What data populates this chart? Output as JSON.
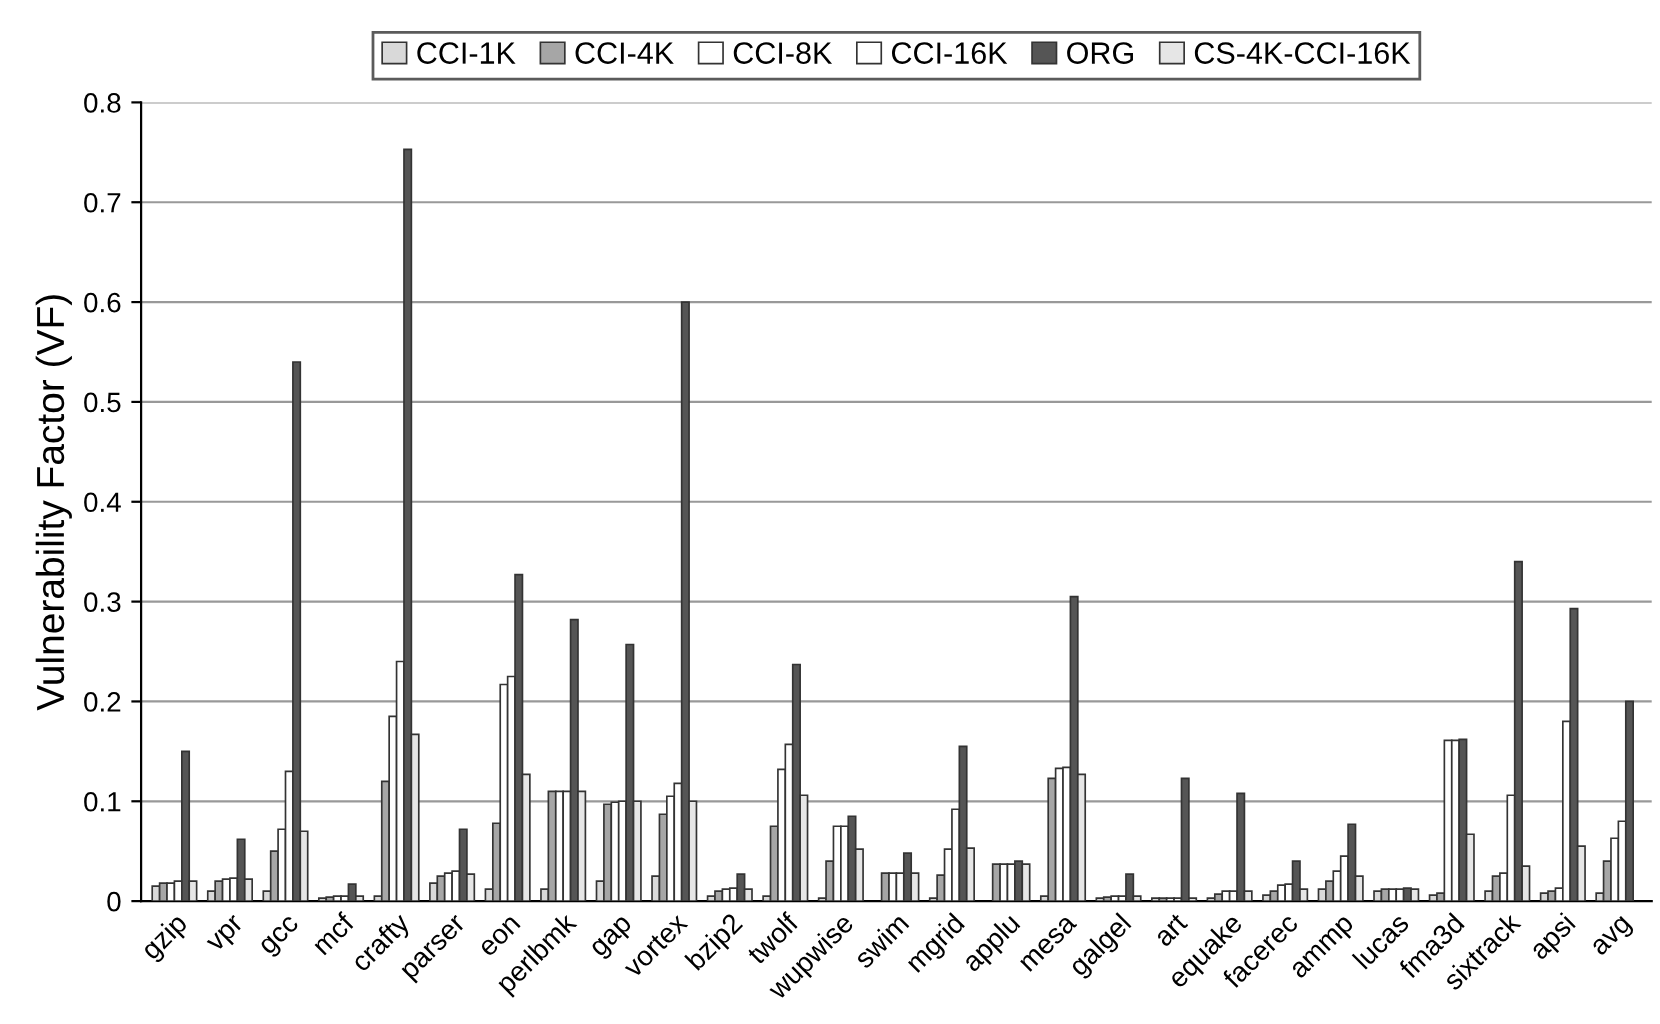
{
  "chart_data": {
    "type": "bar",
    "ylabel": "Vulnerability Factor (VF)",
    "categories": [
      "gzip",
      "vpr",
      "gcc",
      "mcf",
      "crafty",
      "parser",
      "eon",
      "perlbmk",
      "gap",
      "vortex",
      "bzip2",
      "twolf",
      "wupwise",
      "swim",
      "mgrid",
      "applu",
      "mesa",
      "galgel",
      "art",
      "equake",
      "facerec",
      "ammp",
      "lucas",
      "fma3d",
      "sixtrack",
      "apsi",
      "avg"
    ],
    "series": [
      {
        "name": "CCI-1K",
        "color": "#d9d9d9",
        "values": [
          0.015,
          0.01,
          0.01,
          0.003,
          0.005,
          0.018,
          0.012,
          0.012,
          0.02,
          0.025,
          0.005,
          0.005,
          0.003,
          null,
          0.003,
          null,
          0.005,
          0.003,
          0.003,
          0.003,
          0.006,
          0.012,
          0.01,
          0.006,
          0.01,
          0.008,
          0.008
        ]
      },
      {
        "name": "CCI-4K",
        "color": "#a6a6a6",
        "values": [
          0.018,
          0.02,
          0.05,
          0.004,
          0.12,
          0.025,
          0.078,
          0.11,
          0.097,
          0.087,
          0.01,
          0.075,
          0.04,
          0.028,
          0.026,
          0.037,
          0.123,
          0.004,
          0.003,
          0.007,
          0.01,
          0.02,
          0.012,
          0.008,
          0.025,
          0.01,
          0.04
        ]
      },
      {
        "name": "CCI-8K",
        "color": "#ffffff",
        "values": [
          0.018,
          0.022,
          0.072,
          0.005,
          0.185,
          0.028,
          0.217,
          0.11,
          0.099,
          0.105,
          0.012,
          0.132,
          0.075,
          0.028,
          0.052,
          0.037,
          0.133,
          0.005,
          0.003,
          0.01,
          0.016,
          0.03,
          0.012,
          0.161,
          0.028,
          0.013,
          0.063
        ]
      },
      {
        "name": "CCI-16K",
        "color": "#ffffff",
        "values": [
          0.02,
          0.023,
          0.13,
          0.005,
          0.24,
          0.03,
          0.225,
          0.11,
          0.1,
          0.118,
          0.013,
          0.157,
          0.075,
          0.028,
          0.092,
          0.037,
          0.134,
          0.005,
          0.003,
          0.01,
          0.017,
          0.045,
          0.012,
          0.161,
          0.106,
          0.18,
          0.08
        ]
      },
      {
        "name": "ORG",
        "color": "#555555",
        "values": [
          0.15,
          0.062,
          0.54,
          0.017,
          0.753,
          0.072,
          0.327,
          0.282,
          0.257,
          0.6,
          0.027,
          0.237,
          0.085,
          0.048,
          0.155,
          0.04,
          0.305,
          0.027,
          0.123,
          0.108,
          0.04,
          0.077,
          0.013,
          0.162,
          0.34,
          0.293,
          0.2
        ]
      },
      {
        "name": "CS-4K-CCI-16K",
        "color": "#e6e6e6",
        "values": [
          0.02,
          0.022,
          0.07,
          0.005,
          0.167,
          0.027,
          0.127,
          0.11,
          0.1,
          0.1,
          0.012,
          0.106,
          0.052,
          0.028,
          0.053,
          0.037,
          0.127,
          0.005,
          0.003,
          0.01,
          0.012,
          0.025,
          0.012,
          0.067,
          0.035,
          0.055,
          null
        ]
      }
    ],
    "ylim": [
      0,
      0.8
    ],
    "yticks": [
      0,
      0.1,
      0.2,
      0.3,
      0.4,
      0.5,
      0.6,
      0.7,
      0.8
    ],
    "grid": "y",
    "legend": "top"
  }
}
